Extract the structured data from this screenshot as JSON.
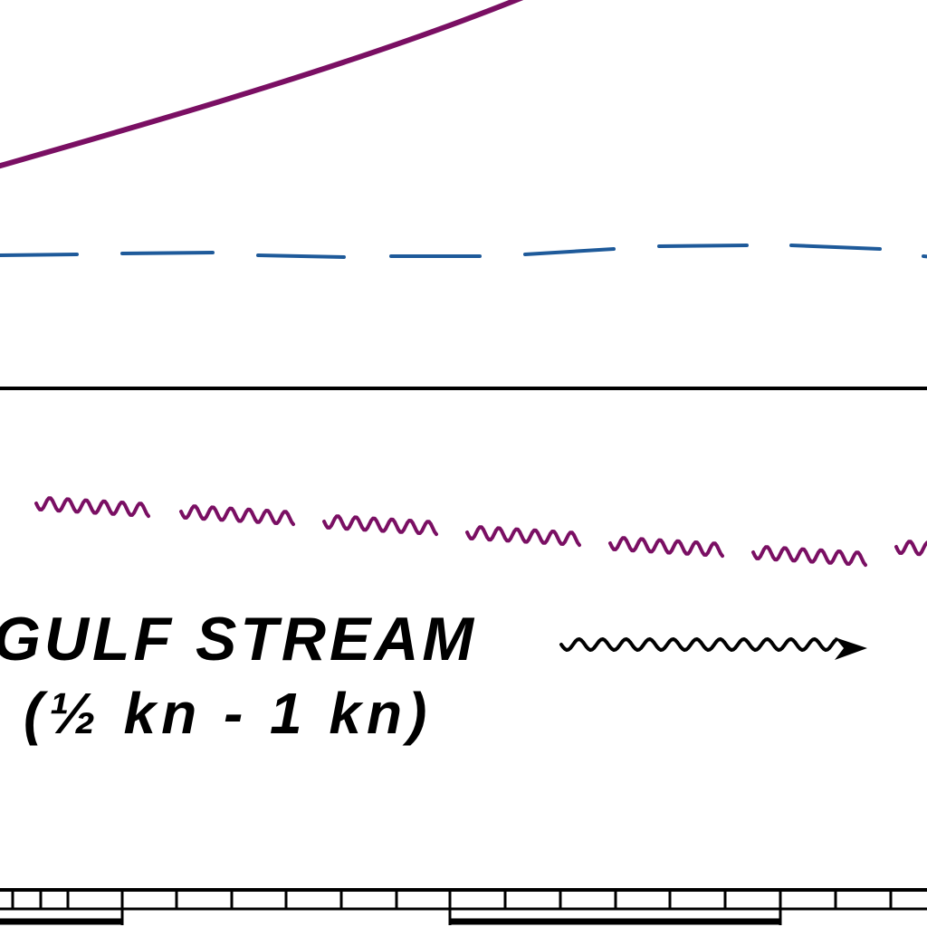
{
  "map": {
    "legend": {
      "name": "GULF STREAM",
      "speed": "(½ kn - 1 kn)"
    },
    "colors": {
      "curve": "#7a0f63",
      "dashed_line": "#1e5a9a",
      "wavy_line": "#7a0f63",
      "ink": "#000000",
      "background": "#ffffff"
    },
    "icons": {
      "current_arrow": "wavy-arrow-icon",
      "scale_bar": "scale-bar-icon"
    }
  }
}
